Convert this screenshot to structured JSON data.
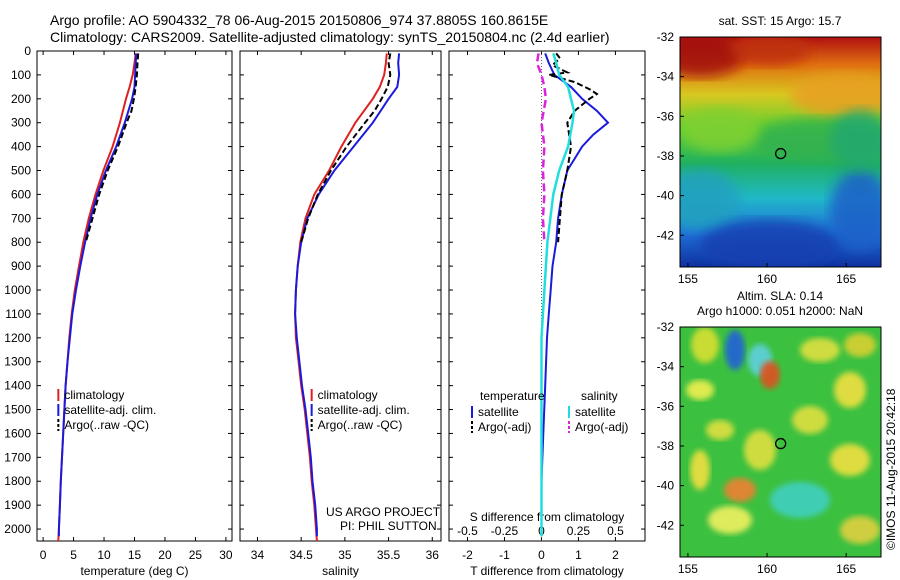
{
  "header": {
    "line1": "Argo profile: AO 5904332_78 06-Aug-2015 20150806_974 37.8805S 160.8615E",
    "line2": "Climatology: CARS2009. Satellite-adjusted climatology: synTS_20150804.nc (2.4d earlier)"
  },
  "side_text": "©IMOS 11-Aug-2015 20:42:18",
  "colors": {
    "climatology": "#e02020",
    "satellite": "#1a1adc",
    "argo": "#000000",
    "salinity_satellite": "#22dddd",
    "salinity_argo": "#dd22dd"
  },
  "chart_data": [
    {
      "type": "line",
      "xlabel": "temperature (deg C)",
      "xlim": [
        -1,
        31
      ],
      "xticks": [
        0,
        5,
        10,
        15,
        20,
        25,
        30
      ],
      "ylim": [
        0,
        2050
      ],
      "yticks": [
        0,
        100,
        200,
        300,
        400,
        500,
        600,
        700,
        800,
        900,
        1000,
        1100,
        1200,
        1300,
        1400,
        1500,
        1600,
        1700,
        1800,
        1900,
        2000
      ],
      "legend": [
        "climatology",
        "satellite-adj. clim.",
        "Argo(..raw -QC)"
      ],
      "series": [
        {
          "name": "climatology",
          "depth": [
            10,
            50,
            100,
            150,
            200,
            300,
            400,
            500,
            600,
            700,
            800,
            900,
            1000,
            1100,
            1200,
            1300,
            1400,
            1500,
            1600,
            1700,
            1800,
            1900,
            2000,
            2050
          ],
          "values": [
            15.2,
            15.0,
            14.7,
            14.2,
            13.6,
            12.6,
            11.4,
            9.9,
            8.6,
            7.5,
            6.6,
            5.9,
            5.2,
            4.7,
            4.3,
            4.0,
            3.7,
            3.5,
            3.3,
            3.1,
            2.9,
            2.75,
            2.6,
            2.5
          ]
        },
        {
          "name": "satellite-adj. clim.",
          "depth": [
            10,
            50,
            100,
            150,
            200,
            300,
            400,
            500,
            600,
            700,
            800,
            900,
            1000,
            1100,
            1200,
            1300,
            1400,
            1500,
            1600,
            1700,
            1800,
            1900,
            2000,
            2030
          ],
          "values": [
            15.3,
            15.2,
            15.1,
            15.0,
            14.6,
            13.4,
            12.0,
            10.3,
            8.9,
            7.8,
            6.9,
            6.1,
            5.4,
            4.8,
            4.4,
            4.0,
            3.7,
            3.5,
            3.3,
            3.1,
            2.9,
            2.75,
            2.6,
            2.6
          ]
        },
        {
          "name": "Argo(..raw -QC)",
          "depth": [
            10,
            50,
            100,
            150,
            200,
            250,
            300,
            400,
            500,
            600,
            700,
            800
          ],
          "values": [
            15.6,
            15.5,
            15.4,
            15.2,
            14.9,
            14.5,
            13.7,
            12.3,
            10.6,
            9.2,
            8.1,
            7.0
          ]
        }
      ]
    },
    {
      "type": "line",
      "xlabel": "salinity",
      "xlim": [
        33.8,
        36.1
      ],
      "xticks": [
        34,
        34.5,
        35,
        35.5,
        36
      ],
      "ylim": [
        0,
        2050
      ],
      "legend": [
        "climatology",
        "satellite-adj. clim.",
        "Argo(..raw -QC)"
      ],
      "annotation": [
        "US ARGO PROJECT",
        "PI: PHIL SUTTON"
      ],
      "series": [
        {
          "name": "climatology",
          "depth": [
            10,
            50,
            100,
            150,
            200,
            300,
            400,
            500,
            600,
            700,
            800,
            900,
            1000,
            1100,
            1200,
            1300,
            1400,
            1500,
            1600,
            1700,
            1800,
            1900,
            2000,
            2050
          ],
          "values": [
            35.48,
            35.47,
            35.45,
            35.4,
            35.32,
            35.12,
            34.96,
            34.82,
            34.65,
            34.55,
            34.49,
            34.46,
            34.44,
            34.43,
            34.44,
            34.47,
            34.5,
            34.54,
            34.57,
            34.6,
            34.62,
            34.65,
            34.67,
            34.68
          ]
        },
        {
          "name": "satellite-adj. clim.",
          "depth": [
            10,
            50,
            100,
            150,
            200,
            300,
            400,
            500,
            600,
            700,
            800,
            900,
            1000,
            1100,
            1200,
            1300,
            1400,
            1500,
            1600,
            1700,
            1800,
            1900,
            2000,
            2030
          ],
          "values": [
            35.62,
            35.61,
            35.62,
            35.6,
            35.5,
            35.32,
            35.1,
            34.88,
            34.7,
            34.57,
            34.5,
            34.46,
            34.44,
            34.43,
            34.45,
            34.48,
            34.51,
            34.55,
            34.58,
            34.61,
            34.63,
            34.66,
            34.68,
            34.68
          ]
        },
        {
          "name": "Argo(..raw -QC)",
          "depth": [
            10,
            50,
            100,
            150,
            200,
            250,
            300,
            400,
            500,
            600,
            700,
            800
          ],
          "values": [
            35.52,
            35.5,
            35.52,
            35.49,
            35.42,
            35.34,
            35.23,
            35.02,
            34.84,
            34.69,
            34.58,
            34.5
          ]
        }
      ]
    },
    {
      "type": "line",
      "xlabel": "T difference from climatology",
      "xlabel_top": "S difference from climatology",
      "xlim": [
        -2.5,
        2.8
      ],
      "xticks": [
        -2,
        -1,
        0,
        1,
        2
      ],
      "xticks_top": [
        -0.5,
        -0.25,
        0,
        0.25,
        0.5
      ],
      "xticklabels_top": [
        "-0.5",
        "-0.25",
        "0",
        "0.25",
        "0.5"
      ],
      "ylim": [
        0,
        2050
      ],
      "legend_groups": [
        {
          "title": "temperature",
          "items": [
            "satellite",
            "Argo(-adj)"
          ]
        },
        {
          "title": "salinity",
          "items": [
            "satellite",
            "Argo(-adj)"
          ]
        }
      ],
      "series": [
        {
          "name": "temperature satellite",
          "depth": [
            10,
            50,
            100,
            150,
            200,
            250,
            300,
            350,
            400,
            450,
            500,
            600,
            700,
            800,
            900,
            1000,
            1100,
            1200,
            1400,
            1600,
            1800,
            2000,
            2030
          ],
          "values": [
            0.1,
            0.2,
            0.35,
            0.8,
            1.1,
            1.5,
            1.8,
            1.4,
            1.1,
            0.9,
            0.7,
            0.55,
            0.45,
            0.4,
            0.3,
            0.25,
            0.2,
            0.15,
            0.1,
            0.05,
            0.0,
            0.0,
            0.0
          ]
        },
        {
          "name": "temperature Argo(-adj)",
          "depth": [
            10,
            30,
            60,
            90,
            100,
            130,
            160,
            180,
            200,
            250,
            300,
            400,
            500,
            600,
            700,
            800
          ],
          "values": [
            0.4,
            0.5,
            0.3,
            0.7,
            0.2,
            0.9,
            1.3,
            1.5,
            1.3,
            0.9,
            0.7,
            0.8,
            0.7,
            0.55,
            0.5,
            0.45
          ]
        },
        {
          "name": "salinity satellite",
          "depth": [
            10,
            50,
            100,
            150,
            200,
            250,
            300,
            400,
            500,
            600,
            800,
            1000,
            1200,
            1400,
            1600,
            1800,
            2000,
            2030
          ],
          "values": [
            0.08,
            0.1,
            0.12,
            0.18,
            0.2,
            0.22,
            0.21,
            0.18,
            0.12,
            0.08,
            0.04,
            0.02,
            0.0,
            0.0,
            0.0,
            0.0,
            0.0,
            0.0
          ]
        },
        {
          "name": "salinity Argo(-adj)",
          "depth": [
            10,
            50,
            100,
            150,
            200,
            300,
            400,
            500,
            600,
            700,
            800
          ],
          "values": [
            -0.02,
            -0.03,
            0.0,
            0.02,
            0.03,
            0.0,
            0.02,
            0.01,
            0.02,
            0.01,
            0.02
          ]
        }
      ]
    },
    {
      "type": "heatmap",
      "title": "sat. SST: 15 Argo: 15.7",
      "xlim": [
        154.5,
        167.2
      ],
      "xticks": [
        155,
        160,
        165
      ],
      "ylim": [
        -43.6,
        -32
      ],
      "yticks": [
        -32,
        -34,
        -36,
        -38,
        -40,
        -42
      ],
      "marker": {
        "lon": 160.86,
        "lat": -37.88
      }
    },
    {
      "type": "heatmap",
      "title": "Altim. SLA: 0.14",
      "subtitle": "Argo h1000: 0.051 h2000: NaN",
      "xlim": [
        154.5,
        167.2
      ],
      "xticks": [
        155,
        160,
        165
      ],
      "ylim": [
        -43.6,
        -32
      ],
      "yticks": [
        -32,
        -34,
        -36,
        -38,
        -40,
        -42
      ],
      "marker": {
        "lon": 160.86,
        "lat": -37.88
      }
    }
  ]
}
